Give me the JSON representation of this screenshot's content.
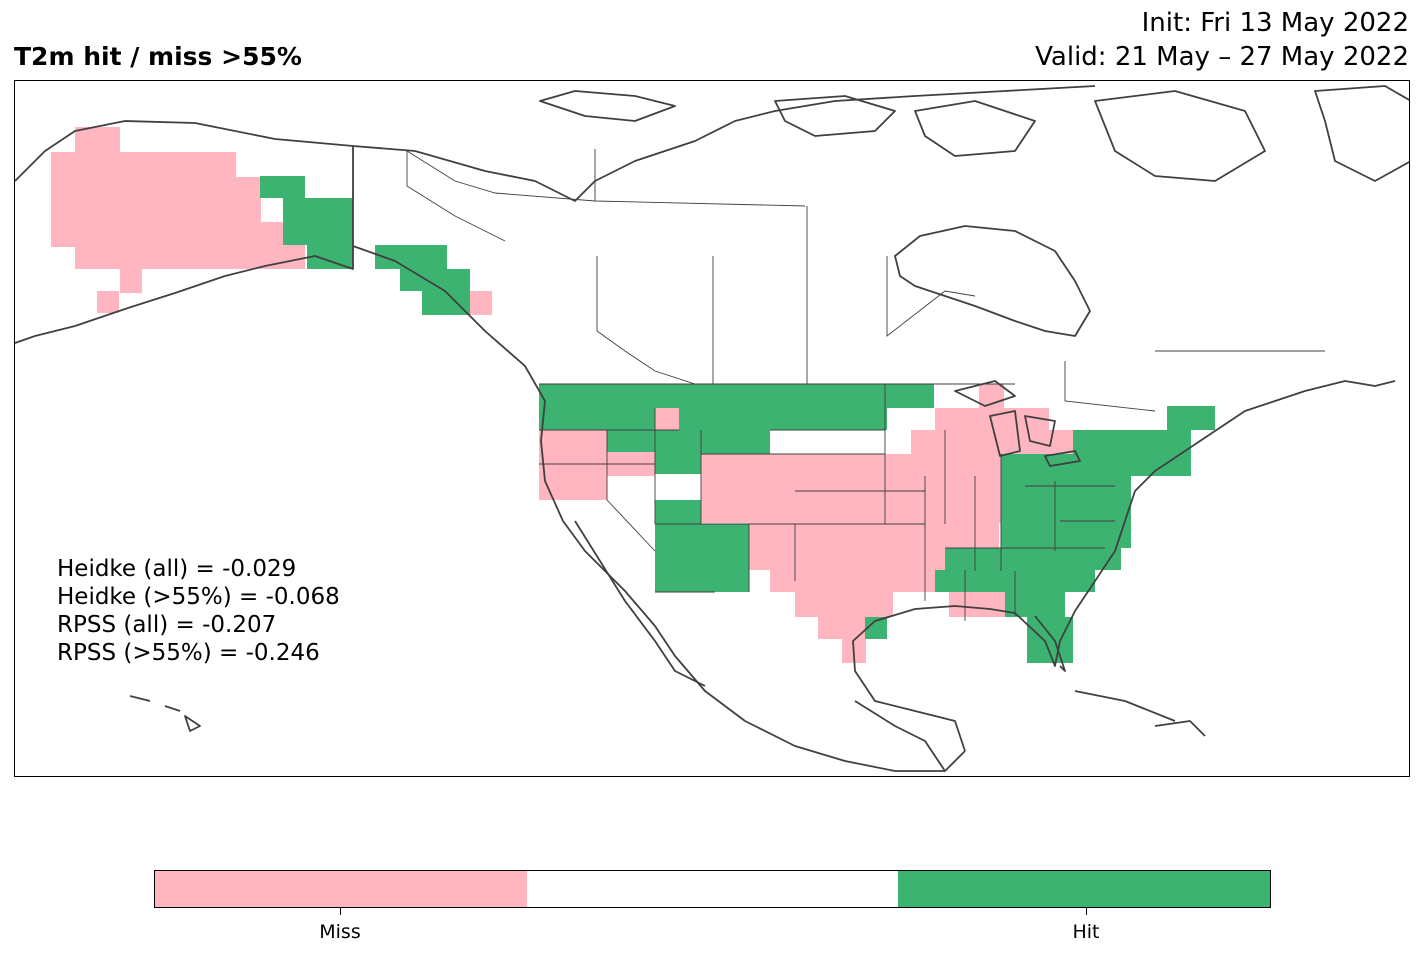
{
  "header": {
    "title": "T2m hit / miss  >55%",
    "init": "Init: Fri 13 May 2022",
    "valid": "Valid: 21 May – 27 May 2022"
  },
  "scores": [
    "Heidke (all) = -0.029",
    "Heidke (>55%) = -0.068",
    "RPSS (all) = -0.207",
    "RPSS (>55%) = -0.246"
  ],
  "colorbar": {
    "segments": [
      {
        "label": "Miss",
        "color": "#ffb6c1"
      },
      {
        "label": "",
        "color": "#ffffff"
      },
      {
        "label": "Hit",
        "color": "#3cb371"
      }
    ]
  },
  "colors": {
    "miss": "#ffb6c1",
    "hit": "#3cb371",
    "coast": "#404040"
  }
}
